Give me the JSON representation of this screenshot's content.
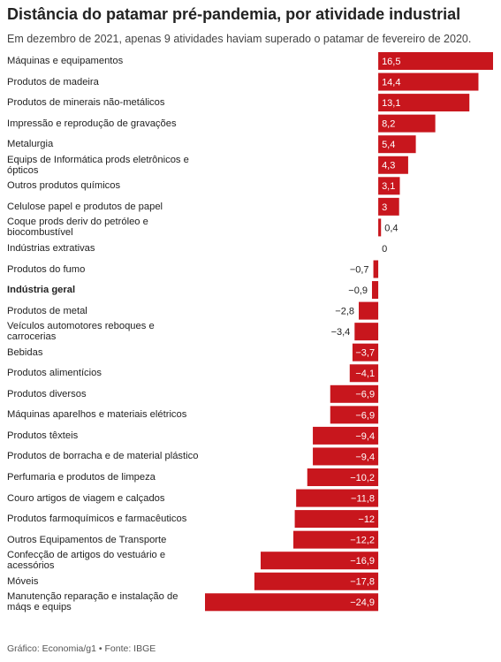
{
  "chart_data": {
    "type": "hbar",
    "title": "Distância do patamar pré-pandemia, por atividade industrial",
    "subtitle": "Em dezembro de 2021, apenas 9 atividades haviam superado o patamar de fevereiro de 2020.",
    "source": "Gráfico: Economia/g1 • Fonte: IBGE",
    "color": "#c8161d",
    "bold_index": 11,
    "categories": [
      "Máquinas e equipamentos",
      "Produtos de madeira",
      "Produtos de minerais não-metálicos",
      "Impressão e reprodução de gravações",
      "Metalurgia",
      "Equips de Informática prods eletrônicos e ópticos",
      "Outros produtos químicos",
      "Celulose papel e produtos de papel",
      "Coque prods deriv do petróleo e biocombustível",
      "Indústrias extrativas",
      "Produtos do fumo",
      "Indústria geral",
      "Produtos de metal",
      "Veículos automotores reboques e carrocerias",
      "Bebidas",
      "Produtos alimentícios",
      "Produtos diversos",
      "Máquinas aparelhos e materiais elétricos",
      "Produtos têxteis",
      "Produtos de borracha e de material plástico",
      "Perfumaria e produtos de limpeza",
      "Couro artigos de viagem e calçados",
      "Produtos farmoquímicos e farmacêuticos",
      "Outros Equipamentos de Transporte",
      "Confecção de artigos do vestuário e acessórios",
      "Móveis",
      "Manutenção reparação e instalação de máqs e equips"
    ],
    "values": [
      16.5,
      14.4,
      13.1,
      8.2,
      5.4,
      4.3,
      3.1,
      3,
      0.4,
      0,
      -0.7,
      -0.9,
      -2.8,
      -3.4,
      -3.7,
      -4.1,
      -6.9,
      -6.9,
      -9.4,
      -9.4,
      -10.2,
      -11.8,
      -12,
      -12.2,
      -16.9,
      -17.8,
      -24.9
    ],
    "value_labels": [
      "16,5",
      "14,4",
      "13,1",
      "8,2",
      "5,4",
      "4,3",
      "3,1",
      "3",
      "0,4",
      "0",
      "−0,7",
      "−0,9",
      "−2,8",
      "−3,4",
      "−3,7",
      "−4,1",
      "−6,9",
      "−6,9",
      "−9,4",
      "−9,4",
      "−10,2",
      "−11,8",
      "−12",
      "−12,2",
      "−16,9",
      "−17,8",
      "−24,9"
    ]
  }
}
